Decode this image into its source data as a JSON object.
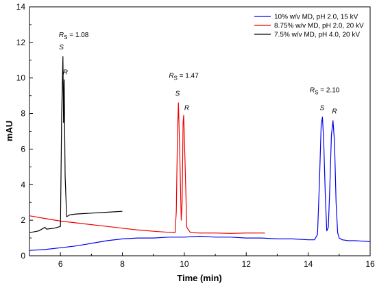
{
  "chart_data": {
    "type": "line",
    "title": "",
    "xlabel": "Time (min)",
    "ylabel": "mAU",
    "xlim": [
      5,
      16
    ],
    "ylim": [
      0,
      14
    ],
    "xticks": [
      "6",
      "8",
      "10",
      "12",
      "14",
      "16"
    ],
    "yticks": [
      "0",
      "2",
      "4",
      "6",
      "8",
      "10",
      "12",
      "14"
    ],
    "grid": false,
    "legend_position": "top-right",
    "series": [
      {
        "name": "10% w/v MD, pH 2.0, 15 kV",
        "color": "#0000ee",
        "x": [
          5.0,
          5.5,
          6.0,
          6.5,
          7.0,
          7.5,
          8.0,
          8.5,
          9.0,
          9.5,
          10.0,
          10.5,
          11.0,
          11.5,
          12.0,
          12.5,
          13.0,
          13.5,
          14.0,
          14.2,
          14.3,
          14.36,
          14.42,
          14.46,
          14.5,
          14.55,
          14.6,
          14.65,
          14.7,
          14.75,
          14.8,
          14.85,
          14.9,
          14.95,
          15.0,
          15.1,
          15.3,
          15.5,
          16.0
        ],
        "y": [
          0.3,
          0.35,
          0.45,
          0.55,
          0.7,
          0.85,
          0.95,
          1.0,
          1.0,
          1.05,
          1.05,
          1.1,
          1.05,
          1.05,
          1.0,
          1.0,
          0.95,
          0.95,
          0.9,
          0.9,
          1.2,
          4.0,
          7.4,
          7.8,
          6.5,
          3.5,
          1.4,
          1.6,
          4.0,
          6.8,
          7.6,
          6.4,
          3.0,
          1.3,
          1.0,
          0.9,
          0.85,
          0.85,
          0.8
        ]
      },
      {
        "name": "8.75% w/v MD, pH 2.0, 20 kV",
        "color": "#ee0000",
        "x": [
          5.0,
          5.5,
          6.0,
          6.5,
          7.0,
          7.5,
          8.0,
          8.5,
          9.0,
          9.5,
          9.7,
          9.74,
          9.78,
          9.81,
          9.85,
          9.9,
          9.93,
          9.96,
          9.98,
          10.02,
          10.08,
          10.2,
          10.5,
          11.0,
          11.5,
          12.0,
          12.6
        ],
        "y": [
          2.25,
          2.1,
          1.95,
          1.85,
          1.75,
          1.65,
          1.55,
          1.45,
          1.38,
          1.32,
          1.3,
          2.5,
          7.0,
          8.6,
          6.0,
          2.0,
          3.0,
          7.5,
          7.9,
          5.5,
          1.6,
          1.3,
          1.28,
          1.28,
          1.26,
          1.28,
          1.28
        ]
      },
      {
        "name": "7.5% w/v MD, pH 4.0, 20 kV",
        "color": "#000000",
        "x": [
          5.0,
          5.3,
          5.45,
          5.5,
          5.55,
          5.8,
          6.0,
          6.04,
          6.08,
          6.1,
          6.12,
          6.15,
          6.2,
          6.3,
          6.5,
          7.0,
          7.5,
          8.0
        ],
        "y": [
          1.3,
          1.4,
          1.55,
          1.6,
          1.5,
          1.55,
          1.65,
          8.0,
          11.2,
          7.5,
          9.9,
          4.5,
          2.2,
          2.3,
          2.35,
          2.4,
          2.45,
          2.5
        ]
      }
    ],
    "annotations": [
      {
        "text": "R",
        "sub": "S",
        "value": " = 1.08",
        "x": 5.95,
        "y": 12.3
      },
      {
        "text": "R",
        "sub": "S",
        "value": " = 1.47",
        "x": 9.5,
        "y": 10.0
      },
      {
        "text": "R",
        "sub": "S",
        "value": " = 2.10",
        "x": 14.05,
        "y": 9.2
      }
    ],
    "peak_labels": [
      {
        "text": "S",
        "x": 6.03,
        "y": 11.6
      },
      {
        "text": "R",
        "x": 6.16,
        "y": 10.2
      },
      {
        "text": "S",
        "x": 9.78,
        "y": 9.0
      },
      {
        "text": "R",
        "x": 10.08,
        "y": 8.2
      },
      {
        "text": "S",
        "x": 14.45,
        "y": 8.2
      },
      {
        "text": "R",
        "x": 14.85,
        "y": 8.0
      }
    ]
  }
}
